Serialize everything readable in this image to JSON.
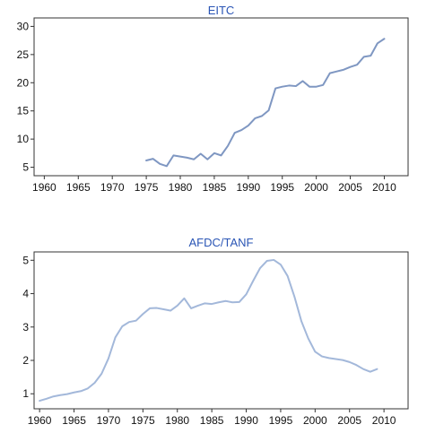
{
  "chart_data": [
    {
      "type": "line",
      "title": "EITC",
      "xlim": [
        1958.5,
        2013.5
      ],
      "ylim": [
        3.5,
        31.5
      ],
      "x_ticks": [
        "1960",
        "1965",
        "1970",
        "1975",
        "1980",
        "1985",
        "1990",
        "1995",
        "2000",
        "2005",
        "2010"
      ],
      "y_ticks": [
        "5",
        "10",
        "15",
        "20",
        "25",
        "30"
      ],
      "grid": false,
      "colors": {
        "line": "#7f97c2",
        "title": "#2a55b5"
      },
      "series": [
        {
          "x": [
            1975,
            1976,
            1977,
            1978,
            1979,
            1980,
            1981,
            1982,
            1983,
            1984,
            1985,
            1986,
            1987,
            1988,
            1989,
            1990,
            1991,
            1992,
            1993,
            1994,
            1995,
            1996,
            1997,
            1998,
            1999,
            2000,
            2001,
            2002,
            2003,
            2004,
            2005,
            2006,
            2007,
            2008,
            2009,
            2010
          ],
          "y": [
            6.2,
            6.5,
            5.6,
            5.2,
            7.1,
            6.9,
            6.7,
            6.4,
            7.4,
            6.4,
            7.5,
            7.1,
            8.8,
            11.1,
            11.6,
            12.4,
            13.7,
            14.1,
            15.1,
            19.0,
            19.3,
            19.5,
            19.4,
            20.3,
            19.3,
            19.3,
            19.6,
            21.7,
            22.0,
            22.3,
            22.8,
            23.2,
            24.6,
            24.8,
            27.0,
            27.8
          ]
        }
      ]
    },
    {
      "type": "line",
      "title": "AFDC/TANF",
      "xlim": [
        1959.2,
        2013.5
      ],
      "ylim": [
        0.55,
        5.25
      ],
      "x_ticks": [
        "1960",
        "1965",
        "1970",
        "1975",
        "1980",
        "1985",
        "1990",
        "1995",
        "2000",
        "2005",
        "2010"
      ],
      "y_ticks": [
        "1",
        "2",
        "3",
        "4",
        "5"
      ],
      "grid": false,
      "colors": {
        "line": "#a3b8da",
        "title": "#2a55b5"
      },
      "series": [
        {
          "x": [
            1960,
            1961,
            1962,
            1963,
            1964,
            1965,
            1966,
            1967,
            1968,
            1969,
            1970,
            1971,
            1972,
            1973,
            1974,
            1975,
            1976,
            1977,
            1978,
            1979,
            1980,
            1981,
            1982,
            1983,
            1984,
            1985,
            1986,
            1987,
            1988,
            1989,
            1990,
            1991,
            1992,
            1993,
            1994,
            1995,
            1996,
            1997,
            1998,
            1999,
            2000,
            2001,
            2002,
            2003,
            2004,
            2005,
            2006,
            2007,
            2008,
            2009
          ],
          "y": [
            0.79,
            0.85,
            0.92,
            0.96,
            0.99,
            1.04,
            1.08,
            1.16,
            1.33,
            1.6,
            2.06,
            2.69,
            3.02,
            3.15,
            3.19,
            3.39,
            3.56,
            3.57,
            3.53,
            3.49,
            3.64,
            3.86,
            3.56,
            3.64,
            3.71,
            3.69,
            3.74,
            3.78,
            3.74,
            3.75,
            3.98,
            4.38,
            4.76,
            4.98,
            5.01,
            4.87,
            4.53,
            3.91,
            3.18,
            2.66,
            2.26,
            2.12,
            2.07,
            2.04,
            2.01,
            1.95,
            1.86,
            1.74,
            1.66,
            1.74
          ]
        }
      ]
    }
  ]
}
